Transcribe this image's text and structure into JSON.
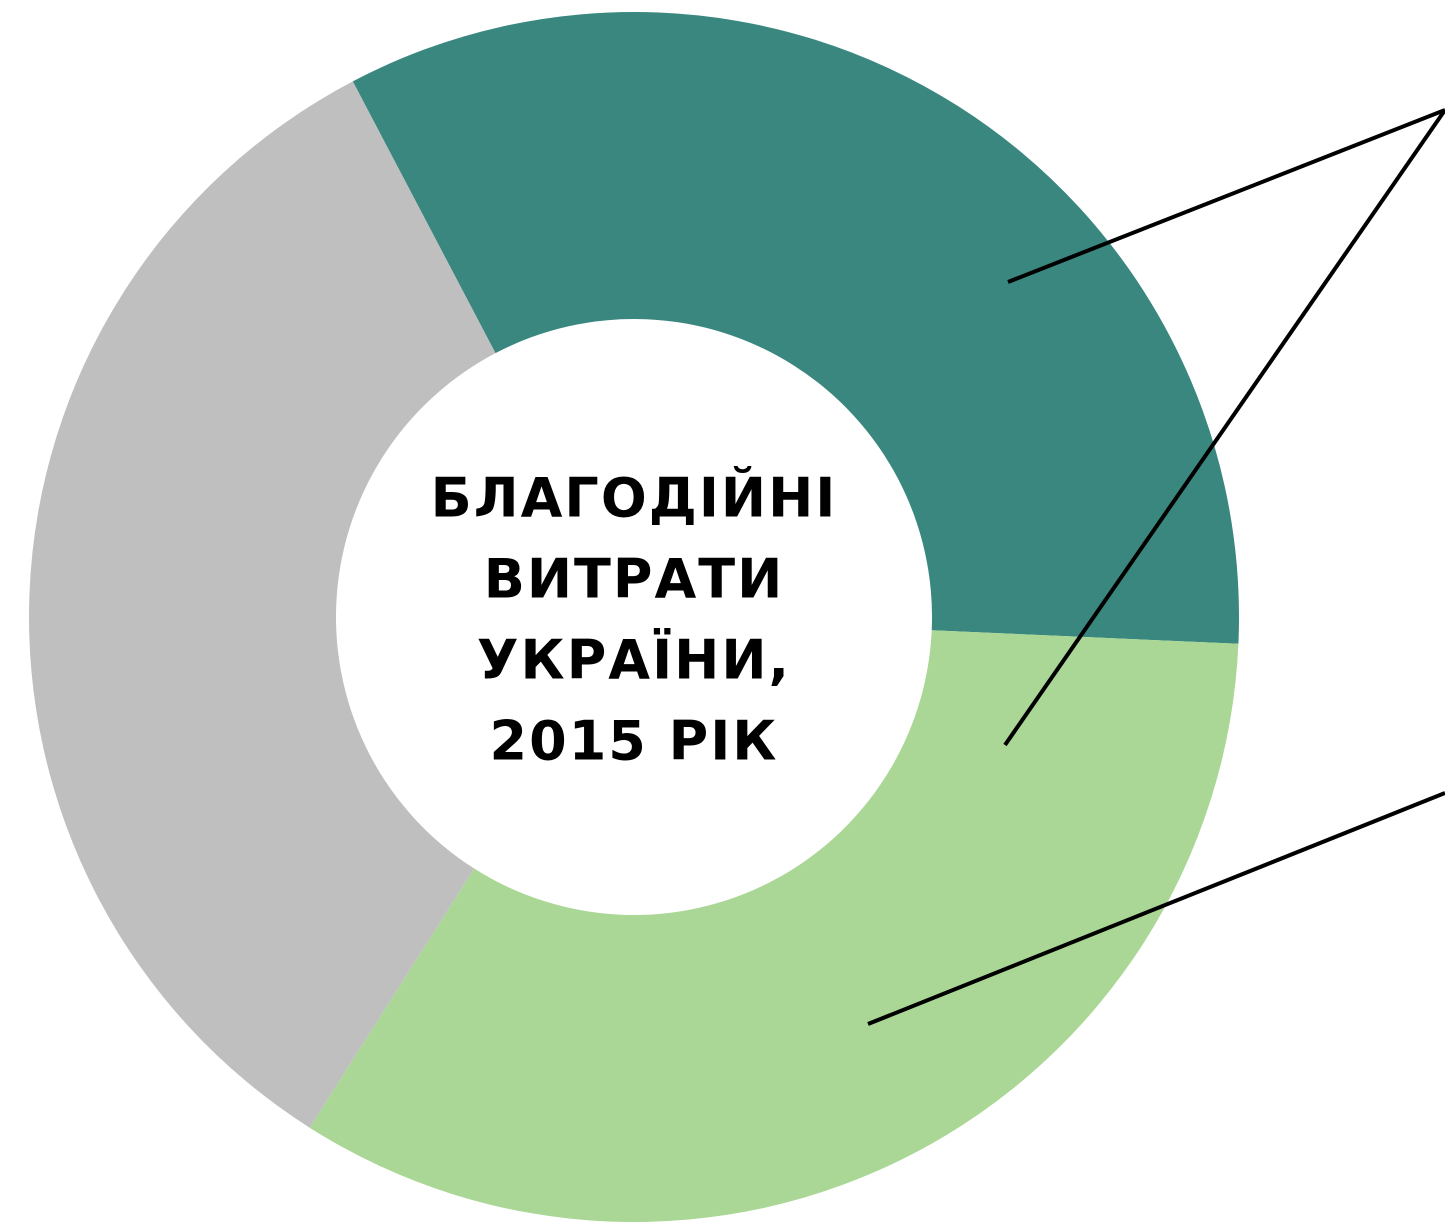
{
  "chart_data": {
    "type": "donut",
    "title": [
      "БЛАГОДІЙНІ",
      "ВИТРАТИ",
      "УКРАЇНИ,",
      "2015 РІК"
    ],
    "values": [
      33.4,
      33.3,
      33.3
    ],
    "colors": [
      "#3a8780",
      "#aad796",
      "#bfbfbf"
    ]
  }
}
